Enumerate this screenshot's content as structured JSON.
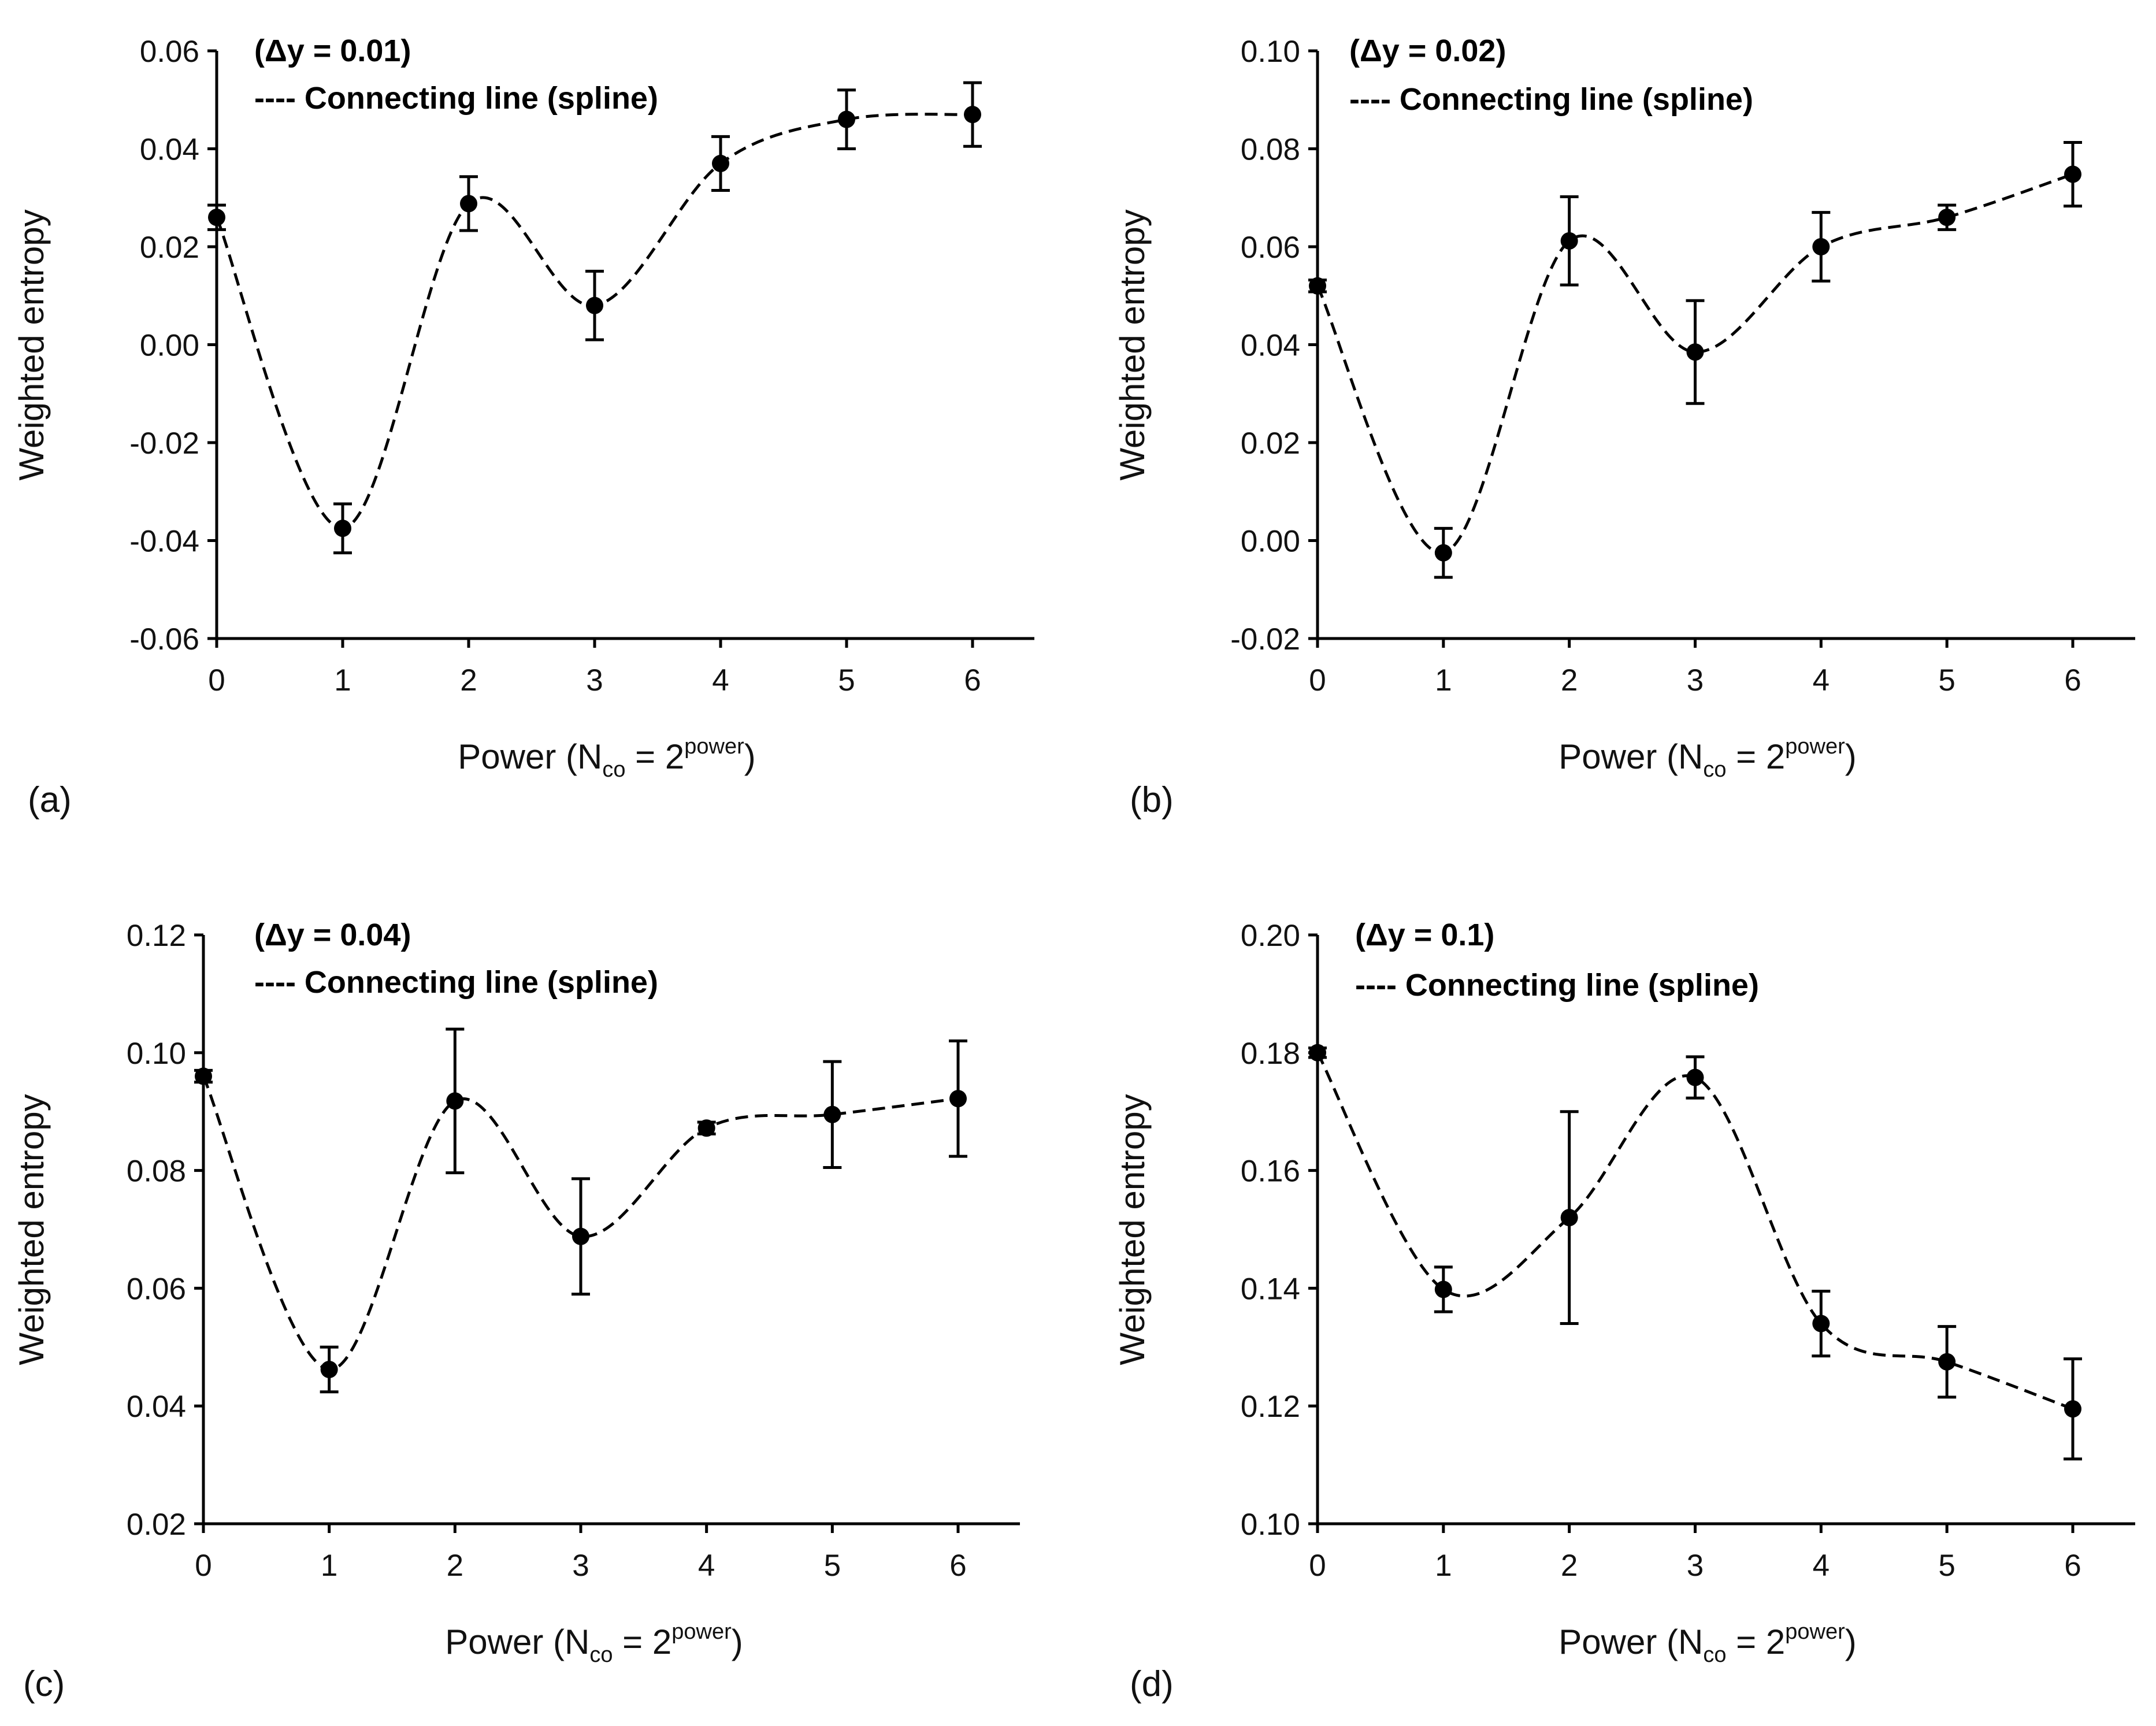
{
  "chart_data": [
    {
      "type": "scatter",
      "panel_label": "(a)",
      "annotation": "(Δy = 0.01)",
      "legend": "---- Connecting line (spline)",
      "xlabel": {
        "main": "Power (N",
        "sub": "co",
        "mid": " = 2",
        "sup": "power",
        "end": ")"
      },
      "ylabel": "Weighted entropy",
      "xlim": [
        0,
        6.5
      ],
      "ylim": [
        -0.06,
        0.06
      ],
      "xticks": [
        0,
        1,
        2,
        3,
        4,
        5,
        6
      ],
      "xtick_labels": [
        "0",
        "1",
        "2",
        "3",
        "4",
        "5",
        "6"
      ],
      "yticks": [
        -0.06,
        -0.04,
        -0.02,
        0.0,
        0.02,
        0.04,
        0.06
      ],
      "ytick_labels": [
        "-0.06",
        "-0.04",
        "-0.02",
        "0.00",
        "0.02",
        "0.04",
        "0.06"
      ],
      "series": [
        {
          "name": "Connecting line (spline)",
          "x": [
            0,
            1,
            2,
            3,
            4,
            5,
            6
          ],
          "y": [
            0.026,
            -0.0375,
            0.0288,
            0.008,
            0.037,
            0.046,
            0.047
          ],
          "err": [
            0.0025,
            0.005,
            0.0055,
            0.007,
            0.0055,
            0.006,
            0.0065
          ]
        }
      ]
    },
    {
      "type": "scatter",
      "panel_label": "(b)",
      "annotation": "(Δy = 0.02)",
      "legend": "---- Connecting line (spline)",
      "xlabel": {
        "main": "Power (N",
        "sub": "co",
        "mid": " = 2",
        "sup": "power",
        "end": ")"
      },
      "ylabel": "Weighted entropy",
      "xlim": [
        0,
        6.5
      ],
      "ylim": [
        -0.02,
        0.1
      ],
      "xticks": [
        0,
        1,
        2,
        3,
        4,
        5,
        6
      ],
      "xtick_labels": [
        "0",
        "1",
        "2",
        "3",
        "4",
        "5",
        "6"
      ],
      "yticks": [
        -0.02,
        0.0,
        0.02,
        0.04,
        0.06,
        0.08,
        0.1
      ],
      "ytick_labels": [
        "-0.02",
        "0.00",
        "0.02",
        "0.04",
        "0.06",
        "0.08",
        "0.10"
      ],
      "series": [
        {
          "name": "Connecting line (spline)",
          "x": [
            0,
            1,
            2,
            3,
            4,
            5,
            6
          ],
          "y": [
            0.052,
            -0.0025,
            0.0612,
            0.0385,
            0.06,
            0.066,
            0.0748
          ],
          "err": [
            0.0012,
            0.005,
            0.009,
            0.0105,
            0.007,
            0.0025,
            0.0065
          ]
        }
      ]
    },
    {
      "type": "scatter",
      "panel_label": "(c)",
      "annotation": "(Δy = 0.04)",
      "legend": "---- Connecting line (spline)",
      "xlabel": {
        "main": "Power (N",
        "sub": "co",
        "mid": " = 2",
        "sup": "power",
        "end": ")"
      },
      "ylabel": "Weighted entropy",
      "xlim": [
        0,
        6.5
      ],
      "ylim": [
        0.02,
        0.12
      ],
      "xticks": [
        0,
        1,
        2,
        3,
        4,
        5,
        6
      ],
      "xtick_labels": [
        "0",
        "1",
        "2",
        "3",
        "4",
        "5",
        "6"
      ],
      "yticks": [
        0.02,
        0.04,
        0.06,
        0.08,
        0.1,
        0.12
      ],
      "ytick_labels": [
        "0.02",
        "0.04",
        "0.06",
        "0.08",
        "0.10",
        "0.12"
      ],
      "series": [
        {
          "name": "Connecting line (spline)",
          "x": [
            0,
            1,
            2,
            3,
            4,
            5,
            6
          ],
          "y": [
            0.096,
            0.0462,
            0.0918,
            0.0688,
            0.0872,
            0.0895,
            0.0922
          ],
          "err": [
            0.001,
            0.0038,
            0.0122,
            0.0098,
            0.001,
            0.009,
            0.0098
          ]
        }
      ]
    },
    {
      "type": "scatter",
      "panel_label": "(d)",
      "annotation": "(Δy = 0.1)",
      "legend": "---- Connecting line (spline)",
      "xlabel": {
        "main": "Power (N",
        "sub": "co",
        "mid": " = 2",
        "sup": "power",
        "end": ")"
      },
      "ylabel": "Weighted entropy",
      "xlim": [
        0,
        6.5
      ],
      "ylim": [
        0.1,
        0.2
      ],
      "xticks": [
        0,
        1,
        2,
        3,
        4,
        5,
        6
      ],
      "xtick_labels": [
        "0",
        "1",
        "2",
        "3",
        "4",
        "5",
        "6"
      ],
      "yticks": [
        0.1,
        0.12,
        0.14,
        0.16,
        0.18,
        0.2
      ],
      "ytick_labels": [
        "0.10",
        "0.12",
        "0.14",
        "0.16",
        "0.18",
        "0.20"
      ],
      "series": [
        {
          "name": "Connecting line (spline)",
          "x": [
            0,
            1,
            2,
            3,
            4,
            5,
            6
          ],
          "y": [
            0.18,
            0.1398,
            0.152,
            0.1758,
            0.134,
            0.1275,
            0.1195
          ],
          "err": [
            0.0008,
            0.0038,
            0.018,
            0.0035,
            0.0055,
            0.006,
            0.0085
          ]
        }
      ]
    }
  ]
}
